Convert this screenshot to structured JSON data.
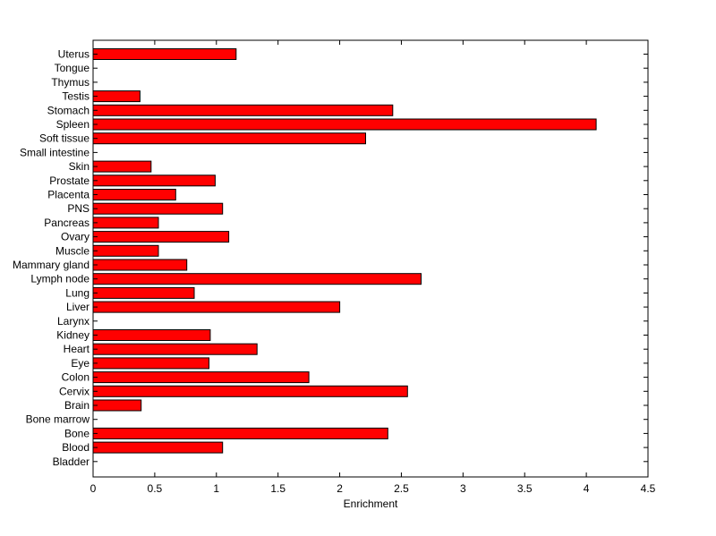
{
  "chart_data": {
    "type": "bar",
    "orientation": "horizontal",
    "title": "",
    "xlabel": "Enrichment",
    "ylabel": "",
    "xlim": [
      0,
      4.5
    ],
    "xticks": [
      0,
      0.5,
      1,
      1.5,
      2,
      2.5,
      3,
      3.5,
      4,
      4.5
    ],
    "xtick_labels": [
      "0",
      "0.5",
      "1",
      "1.5",
      "2",
      "2.5",
      "3",
      "3.5",
      "4",
      "4.5"
    ],
    "grid": false,
    "bar_color": "#ff0000",
    "edge_color": "#000000",
    "categories": [
      "Uterus",
      "Tongue",
      "Thymus",
      "Testis",
      "Stomach",
      "Spleen",
      "Soft tissue",
      "Small intestine",
      "Skin",
      "Prostate",
      "Placenta",
      "PNS",
      "Pancreas",
      "Ovary",
      "Muscle",
      "Mammary gland",
      "Lymph node",
      "Lung",
      "Liver",
      "Larynx",
      "Kidney",
      "Heart",
      "Eye",
      "Colon",
      "Cervix",
      "Brain",
      "Bone marrow",
      "Bone",
      "Blood",
      "Bladder"
    ],
    "values": [
      1.16,
      0,
      0,
      0.38,
      2.43,
      4.08,
      2.21,
      0,
      0.47,
      0.99,
      0.67,
      1.05,
      0.53,
      1.1,
      0.53,
      0.76,
      2.66,
      0.82,
      2.0,
      0,
      0.95,
      1.33,
      0.94,
      1.75,
      2.55,
      0.39,
      0,
      2.39,
      1.05,
      0
    ]
  }
}
